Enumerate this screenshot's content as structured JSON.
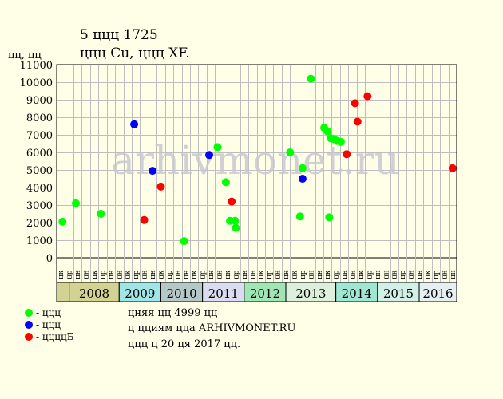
{
  "chart_data": {
    "type": "scatter",
    "title": "5 ццц 1725",
    "subtitle": "ццц Cu, ццц XF.",
    "ylabel": "цц, цц",
    "ylim": [
      0,
      11000
    ],
    "yticks": [
      0,
      1000,
      2000,
      3000,
      4000,
      5000,
      6000,
      7000,
      8000,
      9000,
      10000,
      11000
    ],
    "grid": true,
    "watermark": "arhivmonet.ru",
    "month_labels": [
      "цк",
      "цр",
      "цн",
      "цн",
      "цк",
      "цр",
      "цн",
      "цн",
      "цк",
      "цр",
      "цн",
      "цн",
      "цк",
      "цр",
      "цн",
      "цн",
      "цк",
      "цр",
      "цн",
      "цн",
      "цк",
      "цр",
      "цн",
      "цн",
      "цк",
      "цр",
      "цн",
      "цн",
      "цк",
      "цр",
      "цн",
      "цн",
      "цк",
      "цр",
      "цн",
      "цн"
    ],
    "years": [
      {
        "label": "",
        "color": "#D2D292"
      },
      {
        "label": "2008",
        "color": "#D2D292"
      },
      {
        "label": "2009",
        "color": "#A0E6E6"
      },
      {
        "label": "2010",
        "color": "#B4C8C8"
      },
      {
        "label": "2011",
        "color": "#DCDCF0"
      },
      {
        "label": "2012",
        "color": "#A0E6B4"
      },
      {
        "label": "2013",
        "color": "#DCF0DC"
      },
      {
        "label": "2014",
        "color": "#A0E6D2"
      },
      {
        "label": "2015",
        "color": "#D2F0E6"
      },
      {
        "label": "2016",
        "color": "#E6F0F0"
      }
    ],
    "series": [
      {
        "color": "#00FF00",
        "points": [
          [
            0.2,
            2050
          ],
          [
            1.8,
            3100
          ],
          [
            4.8,
            2500
          ],
          [
            14.8,
            950
          ],
          [
            18.8,
            6300
          ],
          [
            19.8,
            4300
          ],
          [
            20.3,
            2100
          ],
          [
            20.9,
            2100
          ],
          [
            21.0,
            1700
          ],
          [
            27.5,
            6000
          ],
          [
            28.7,
            2350
          ],
          [
            29.0,
            5100
          ],
          [
            30.0,
            10200
          ],
          [
            31.6,
            7400
          ],
          [
            32.0,
            7200
          ],
          [
            32.2,
            2300
          ],
          [
            32.4,
            6800
          ],
          [
            32.8,
            6750
          ],
          [
            33.2,
            6650
          ],
          [
            33.6,
            6600
          ]
        ]
      },
      {
        "color": "#0000FF",
        "points": [
          [
            8.8,
            7600
          ],
          [
            11.0,
            4950
          ],
          [
            17.8,
            5850
          ],
          [
            29.0,
            4500
          ]
        ]
      },
      {
        "color": "#FF0000",
        "points": [
          [
            10.0,
            2150
          ],
          [
            12.0,
            4050
          ],
          [
            20.5,
            3200
          ],
          [
            34.3,
            5900
          ],
          [
            35.3,
            8800
          ],
          [
            35.6,
            7750
          ],
          [
            36.8,
            9200
          ],
          [
            47.0,
            5100
          ]
        ]
      }
    ],
    "legend": [
      {
        "color": "#00FF00",
        "label": "- ццц"
      },
      {
        "color": "#0000FF",
        "label": "- ццц"
      },
      {
        "color": "#FF0000",
        "label": "- ццццБ"
      }
    ],
    "notes": [
      "цняя цц 4999 цц",
      "ц цциям цца ARHIVMONET.RU",
      "ццц ц 20 ця 2017 цц."
    ]
  }
}
